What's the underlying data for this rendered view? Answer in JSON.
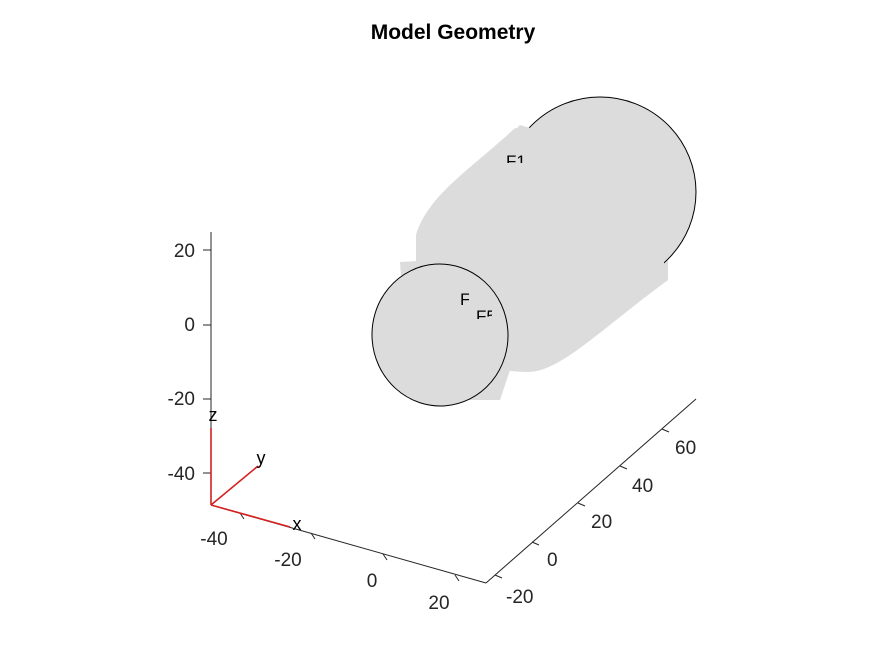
{
  "figure": {
    "title": "Model Geometry",
    "background": "#ffffff",
    "body_color": "#dcdcdc",
    "triad_color": "#d42020"
  },
  "axes": {
    "z_ticks": [
      "20",
      "0",
      "-20",
      "-40"
    ],
    "x_ticks": [
      "-40",
      "-20",
      "0",
      "20"
    ],
    "y_ticks": [
      "-20",
      "0",
      "20",
      "40",
      "60"
    ]
  },
  "triad": {
    "x_label": "x",
    "y_label": "y",
    "z_label": "z"
  },
  "face_labels": {
    "back_face": "F1",
    "front_face": "F6",
    "front_inner": "F5"
  }
}
